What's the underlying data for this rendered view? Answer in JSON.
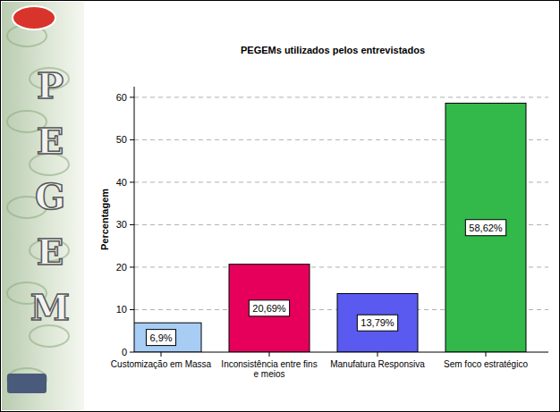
{
  "chart_data": {
    "type": "bar",
    "title": "PEGEMs utilizados pelos entrevistados",
    "ylabel": "Percentagem",
    "categories": [
      "Customização em Massa",
      "Inconsistência entre fins e meios",
      "Manufatura Responsiva",
      "Sem foco estratégico"
    ],
    "values": [
      6.9,
      20.69,
      13.79,
      58.62
    ],
    "value_labels": [
      "6,9%",
      "20,69%",
      "13,79%",
      "58,62%"
    ],
    "colors": [
      "#a8cdf5",
      "#e6005c",
      "#5a5af0",
      "#33b84a"
    ],
    "ylim": [
      0,
      62.5
    ],
    "yticks": [
      0,
      10,
      20,
      30,
      40,
      50,
      60
    ],
    "grid": true,
    "data_labels": true,
    "annotations": [
      "P",
      "E",
      "G",
      "E",
      "M"
    ]
  }
}
